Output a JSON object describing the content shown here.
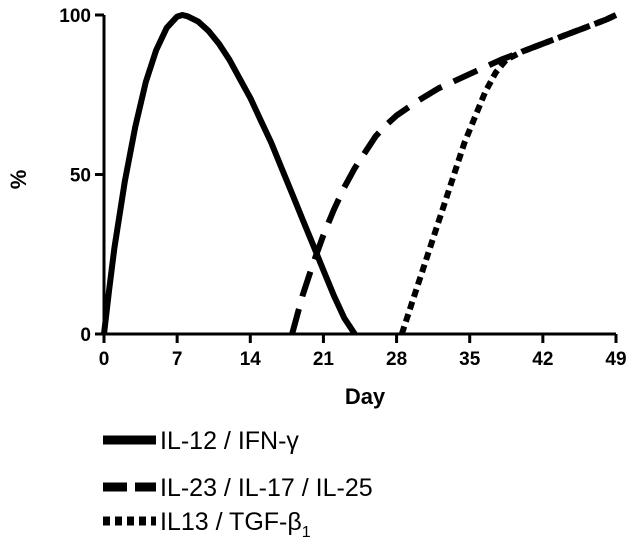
{
  "chart_data": {
    "type": "line",
    "title": "",
    "xlabel": "Day",
    "ylabel": "%",
    "xlim": [
      0,
      49
    ],
    "ylim": [
      0,
      100
    ],
    "x_ticks": [
      "0",
      "7",
      "14",
      "21",
      "28",
      "35",
      "42",
      "49"
    ],
    "y_ticks": [
      "0",
      "50",
      "100"
    ],
    "grid": false,
    "legend_position": "bottom",
    "series": [
      {
        "name": "IL-12 / IFN-γ",
        "name_parts": [
          "IL-12 / IFN-γ",
          ""
        ],
        "dash": "solid",
        "color": "#000000",
        "points": [
          [
            0,
            0
          ],
          [
            0.5,
            14
          ],
          [
            1,
            27
          ],
          [
            2,
            48
          ],
          [
            3,
            65
          ],
          [
            4,
            79
          ],
          [
            5,
            89
          ],
          [
            6,
            96
          ],
          [
            7,
            99.5
          ],
          [
            7.5,
            100
          ],
          [
            8,
            99.6
          ],
          [
            9,
            98
          ],
          [
            10,
            95
          ],
          [
            11,
            91
          ],
          [
            12,
            86
          ],
          [
            13,
            80
          ],
          [
            14,
            74
          ],
          [
            15,
            67
          ],
          [
            16,
            60
          ],
          [
            17,
            52
          ],
          [
            18,
            44
          ],
          [
            19,
            36
          ],
          [
            20,
            28
          ],
          [
            21,
            20
          ],
          [
            22,
            12
          ],
          [
            23,
            5
          ],
          [
            24,
            0
          ]
        ]
      },
      {
        "name": "IL-23 / IL-17 / IL-25",
        "name_parts": [
          "IL-23 / IL-17 / IL-25",
          ""
        ],
        "dash": "dashed",
        "color": "#000000",
        "points": [
          [
            18,
            0
          ],
          [
            19,
            12
          ],
          [
            20,
            22
          ],
          [
            21,
            31
          ],
          [
            22,
            39
          ],
          [
            23,
            46
          ],
          [
            24,
            52
          ],
          [
            25,
            57
          ],
          [
            26,
            62
          ],
          [
            27,
            65.5
          ],
          [
            28,
            68.5
          ],
          [
            30,
            73
          ],
          [
            32,
            77
          ],
          [
            34,
            80
          ],
          [
            36,
            83
          ],
          [
            38,
            86
          ],
          [
            40,
            88.5
          ],
          [
            42,
            91
          ],
          [
            44,
            93.5
          ],
          [
            46,
            96
          ],
          [
            48,
            98.5
          ],
          [
            49,
            100
          ]
        ]
      },
      {
        "name": "IL13 / TGF-β1",
        "name_parts": [
          "IL13 / TGF-β",
          "1"
        ],
        "dash": "dotted",
        "color": "#000000",
        "points": [
          [
            28.5,
            0
          ],
          [
            29.5,
            10
          ],
          [
            30.5,
            20
          ],
          [
            31.5,
            30
          ],
          [
            32.5,
            40
          ],
          [
            33.5,
            50
          ],
          [
            34.5,
            60
          ],
          [
            35.5,
            68
          ],
          [
            36.5,
            76
          ],
          [
            37.5,
            82
          ],
          [
            38.5,
            86
          ],
          [
            40,
            88.5
          ],
          [
            42,
            91
          ],
          [
            44,
            93.5
          ],
          [
            46,
            96
          ],
          [
            48,
            98.5
          ],
          [
            49,
            100
          ]
        ]
      }
    ]
  }
}
